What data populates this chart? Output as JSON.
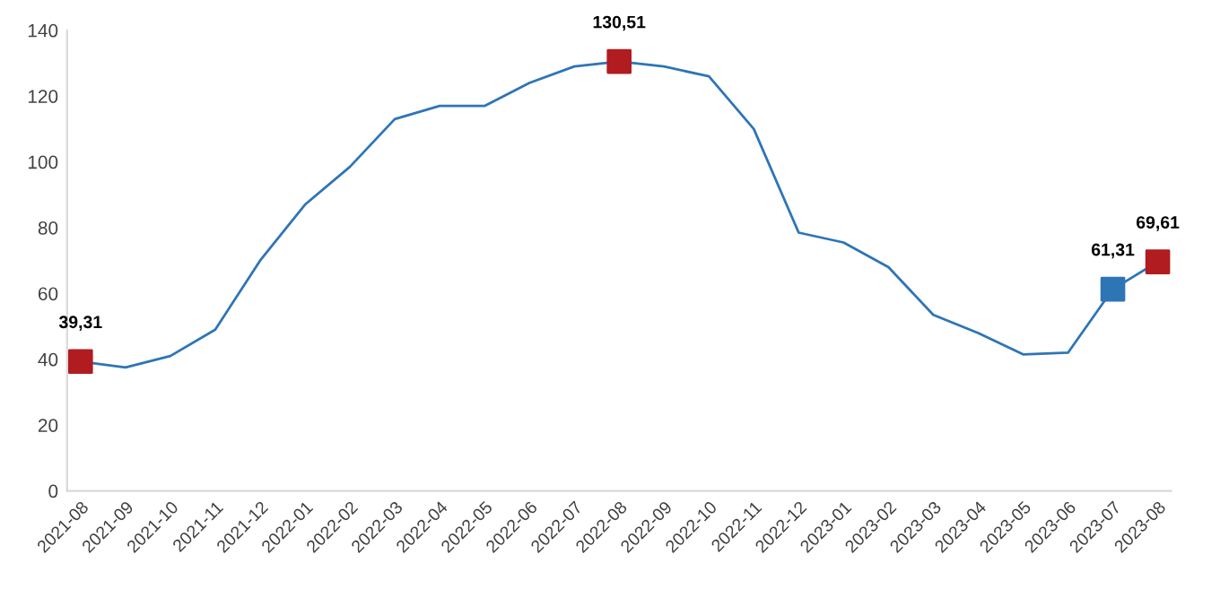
{
  "chart_data": {
    "type": "line",
    "categories": [
      "2021-08",
      "2021-09",
      "2021-10",
      "2021-11",
      "2021-12",
      "2022-01",
      "2022-02",
      "2022-03",
      "2022-04",
      "2022-05",
      "2022-06",
      "2022-07",
      "2022-08",
      "2022-09",
      "2022-10",
      "2022-11",
      "2022-12",
      "2023-01",
      "2023-02",
      "2023-03",
      "2023-04",
      "2023-05",
      "2023-06",
      "2023-07",
      "2023-08"
    ],
    "series": [
      {
        "color": "#2e75b6",
        "marker": "none",
        "values": [
          39.31,
          37.5,
          41,
          49,
          70,
          87,
          98.5,
          113,
          117,
          117,
          124,
          129,
          130.51,
          129,
          126,
          110,
          78.5,
          75.5,
          68,
          53.5,
          48,
          41.5,
          42,
          61.31,
          69.61
        ]
      },
      {
        "type": "scatter",
        "marker": "square",
        "colors": [
          "#b01c20",
          null,
          null,
          null,
          null,
          null,
          null,
          null,
          null,
          null,
          null,
          null,
          "#b01c20",
          null,
          null,
          null,
          null,
          null,
          null,
          null,
          null,
          null,
          null,
          "#2e75b6",
          "#b01c20"
        ],
        "values": [
          39.31,
          null,
          null,
          null,
          null,
          null,
          null,
          null,
          null,
          null,
          null,
          null,
          130.51,
          null,
          null,
          null,
          null,
          null,
          null,
          null,
          null,
          null,
          null,
          61.31,
          69.61
        ],
        "value_labels": [
          "39,31",
          null,
          null,
          null,
          null,
          null,
          null,
          null,
          null,
          null,
          null,
          null,
          "130,51",
          null,
          null,
          null,
          null,
          null,
          null,
          null,
          null,
          null,
          null,
          "61,31",
          "69,61"
        ]
      }
    ],
    "ylim": [
      0,
      140
    ],
    "yticks": [
      0,
      20,
      40,
      60,
      80,
      100,
      120,
      140
    ],
    "grid": false,
    "legend": false
  }
}
